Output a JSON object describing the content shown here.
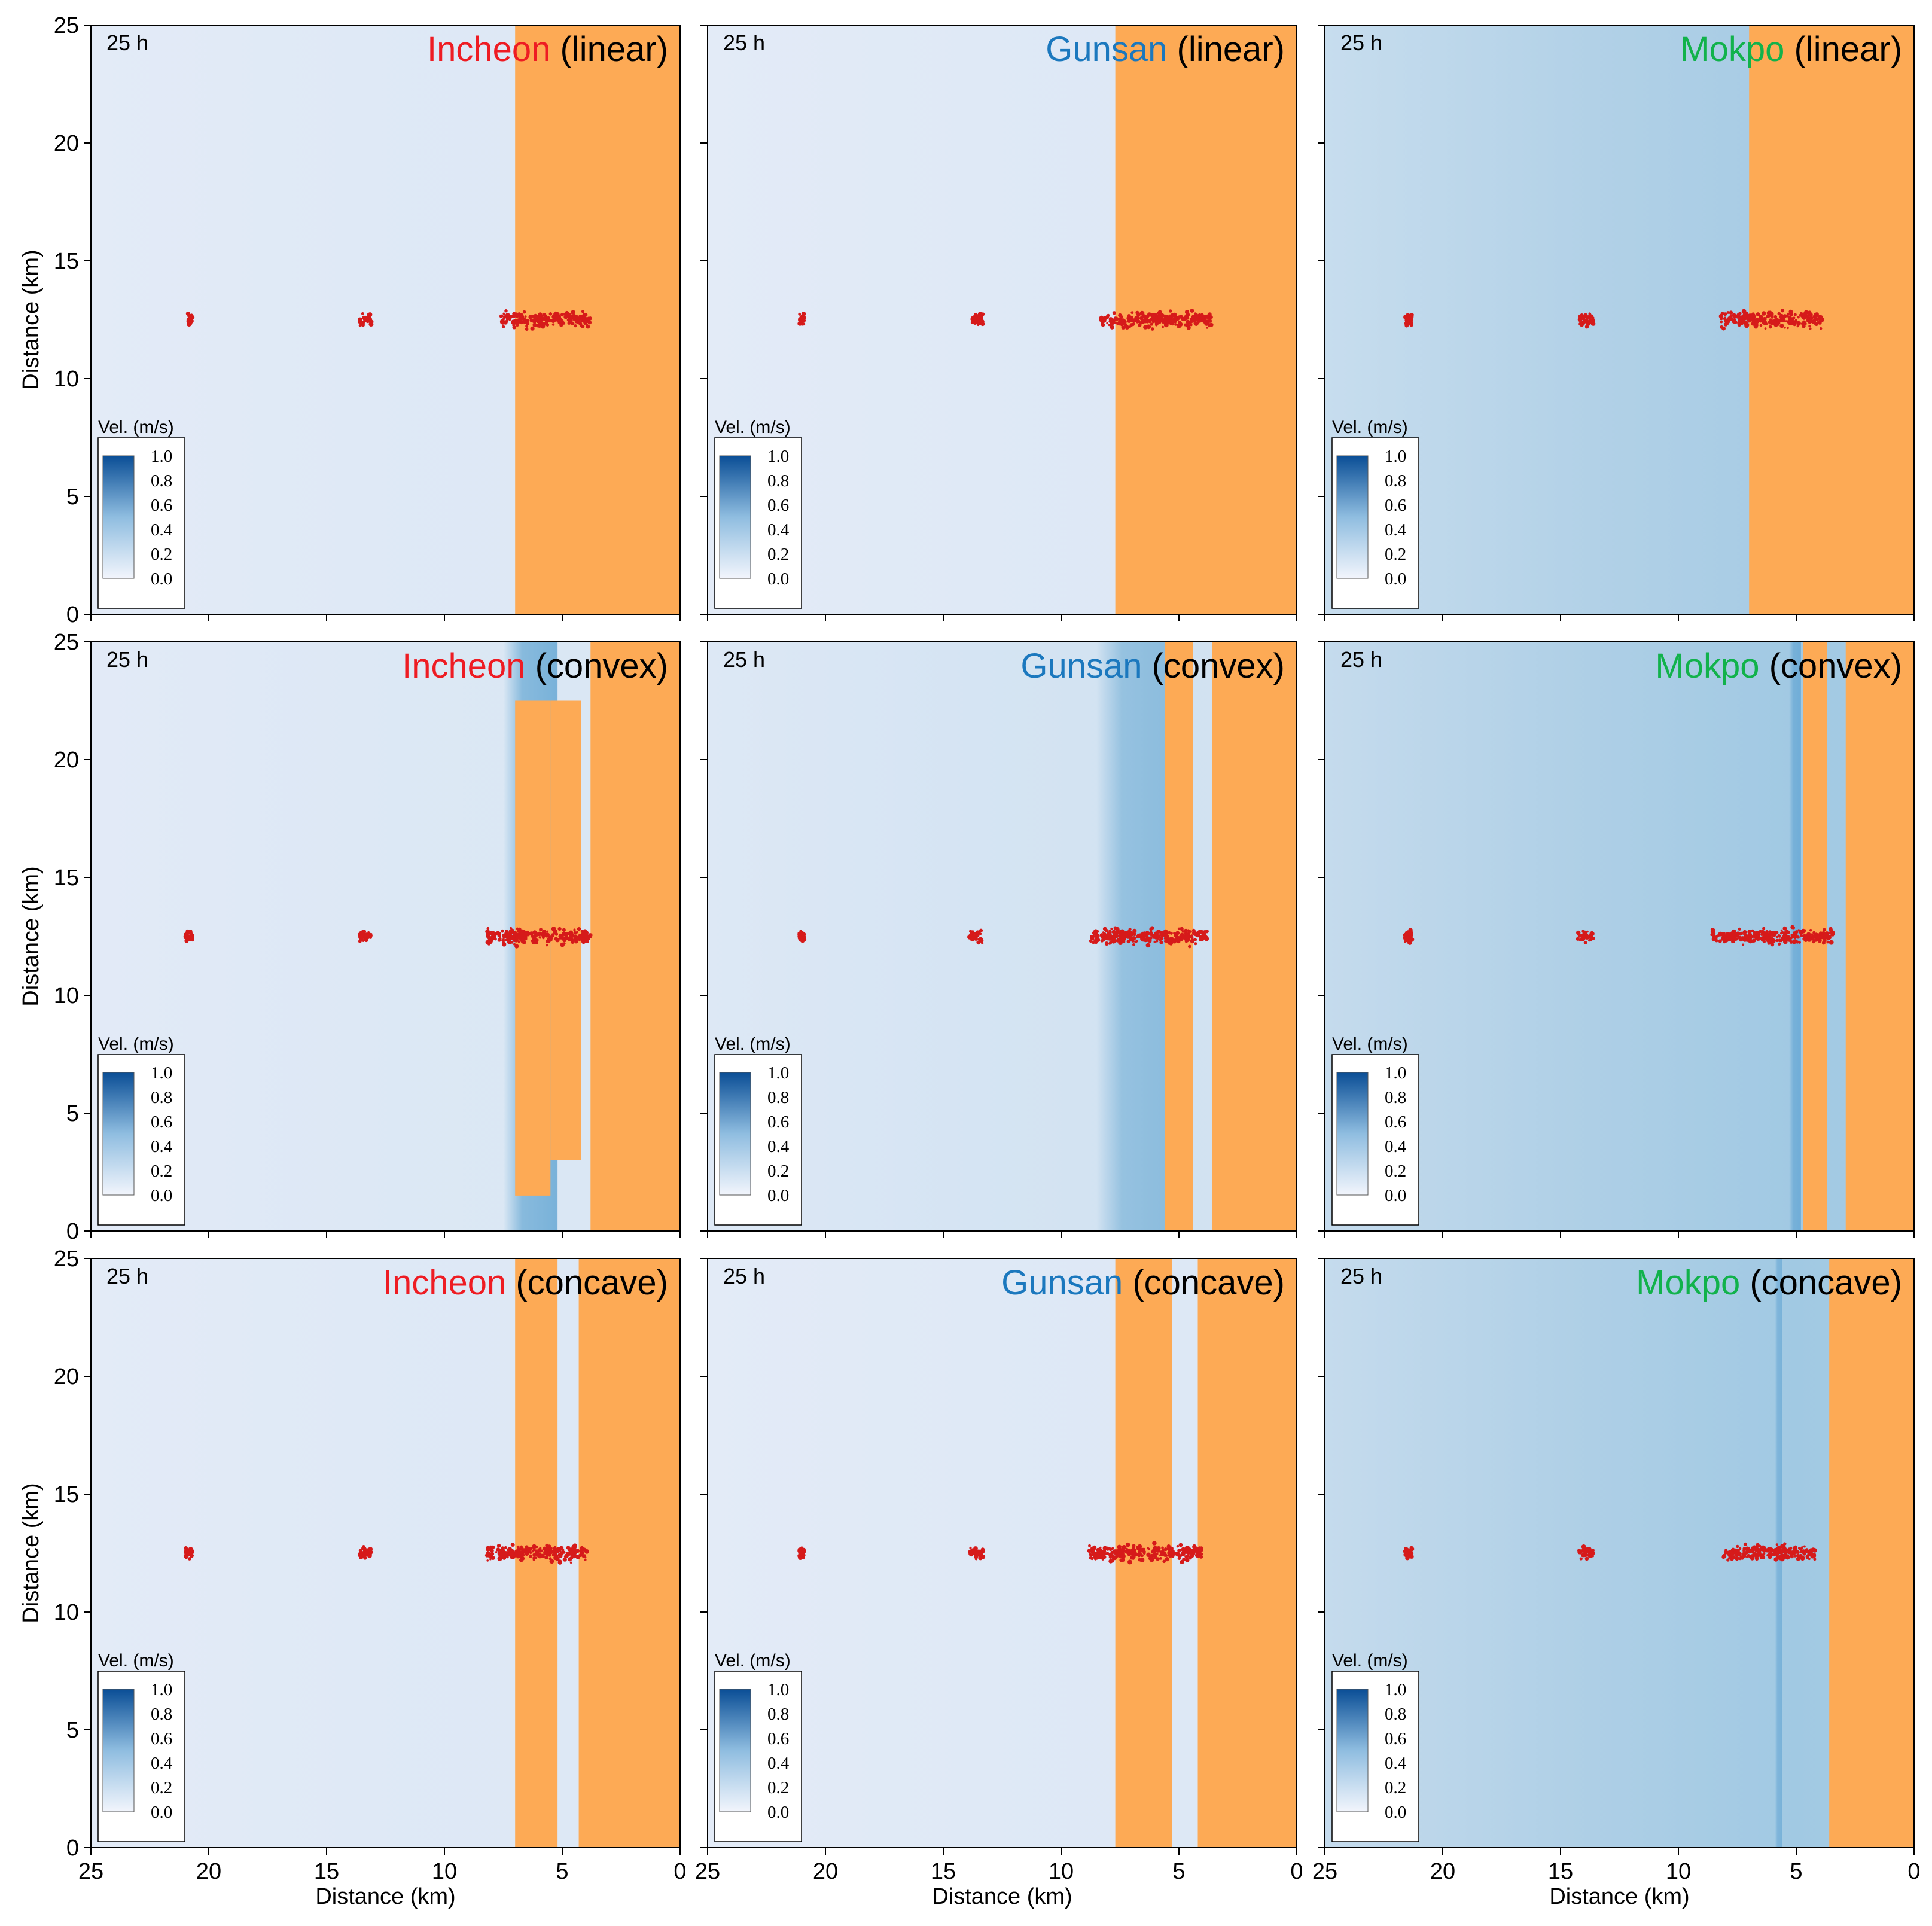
{
  "chart_data": {
    "type": "heatmap",
    "description_fields": "velocity field panels with shoreline (orange land) and red particle clusters",
    "grid": {
      "rows": 3,
      "cols": 3
    },
    "xlabel": "Distance (km)",
    "ylabel": "Distance (km)",
    "xlim": [
      25,
      0
    ],
    "ylim": [
      0,
      25
    ],
    "x_ticks": [
      25,
      20,
      15,
      10,
      5,
      0
    ],
    "y_ticks": [
      0,
      5,
      10,
      15,
      20,
      25
    ],
    "time_label": "25 h",
    "colorbar": {
      "title": "Vel. (m/s)",
      "ticks": [
        "1.0",
        "0.8",
        "0.6",
        "0.4",
        "0.2",
        "0.0"
      ],
      "min": 0.0,
      "max": 1.0,
      "color_low": "#f2f5fc",
      "color_high": "#0a4e96"
    },
    "colors": {
      "land": "#fdaa55",
      "particles": "#d61a1a",
      "ocean_low": "#e9eef9",
      "ocean_mid": "#a7cce4",
      "ocean_high": "#5da2d2"
    },
    "stations": [
      {
        "name": "Incheon",
        "color": "#ee1c23"
      },
      {
        "name": "Gunsan",
        "color": "#1b78be"
      },
      {
        "name": "Mokpo",
        "color": "#11b24b"
      }
    ],
    "shapes": [
      "(linear)",
      "(convex)",
      "(concave)"
    ],
    "panels": [
      {
        "station": "Incheon",
        "shape": "(linear)",
        "background_velocity": 0.05,
        "land": [
          {
            "x_from": 7.0,
            "x_to": 0,
            "y_from": 0,
            "y_to": 25
          }
        ],
        "channel_bands": [],
        "particle_y": 12.5,
        "particle_clusters": [
          {
            "x_from": 20.9,
            "x_to": 20.7
          },
          {
            "x_from": 13.6,
            "x_to": 13.1
          },
          {
            "x_from": 7.6,
            "x_to": 3.8
          }
        ]
      },
      {
        "station": "Gunsan",
        "shape": "(linear)",
        "background_velocity": 0.05,
        "land": [
          {
            "x_from": 7.7,
            "x_to": 0,
            "y_from": 0,
            "y_to": 25
          }
        ],
        "channel_bands": [],
        "particle_y": 12.5,
        "particle_clusters": [
          {
            "x_from": 21.1,
            "x_to": 20.9
          },
          {
            "x_from": 13.8,
            "x_to": 13.3
          },
          {
            "x_from": 8.3,
            "x_to": 3.6
          }
        ]
      },
      {
        "station": "Mokpo",
        "shape": "(linear)",
        "background_velocity": 0.28,
        "land": [
          {
            "x_from": 7.0,
            "x_to": 0,
            "y_from": 0,
            "y_to": 25
          }
        ],
        "channel_bands": [],
        "particle_y": 12.5,
        "particle_clusters": [
          {
            "x_from": 21.6,
            "x_to": 21.3
          },
          {
            "x_from": 14.2,
            "x_to": 13.6
          },
          {
            "x_from": 8.2,
            "x_to": 3.9
          }
        ]
      },
      {
        "station": "Incheon",
        "shape": "(convex)",
        "background_velocity": 0.06,
        "land": [
          {
            "x_from": 7.0,
            "x_to": 5.5,
            "y_from": 1.5,
            "y_to": 22.5
          },
          {
            "x_from": 5.5,
            "x_to": 4.2,
            "y_from": 3.0,
            "y_to": 22.5
          },
          {
            "x_from": 3.8,
            "x_to": 0,
            "y_from": 0,
            "y_to": 25
          }
        ],
        "channel_bands": [
          {
            "x_from": 7.5,
            "x_to": 5.2,
            "velocity": 0.55
          }
        ],
        "particle_y": 12.5,
        "particle_clusters": [
          {
            "x_from": 21.0,
            "x_to": 20.7
          },
          {
            "x_from": 13.6,
            "x_to": 13.1
          },
          {
            "x_from": 8.2,
            "x_to": 3.8
          }
        ]
      },
      {
        "station": "Gunsan",
        "shape": "(convex)",
        "background_velocity": 0.1,
        "land": [
          {
            "x_from": 5.6,
            "x_to": 4.4,
            "y_from": 0,
            "y_to": 25
          },
          {
            "x_from": 3.6,
            "x_to": 0,
            "y_from": 0,
            "y_to": 25
          }
        ],
        "channel_bands": [
          {
            "x_from": 8.5,
            "x_to": 5.4,
            "velocity": 0.45
          }
        ],
        "particle_y": 12.5,
        "particle_clusters": [
          {
            "x_from": 21.1,
            "x_to": 20.9
          },
          {
            "x_from": 13.9,
            "x_to": 13.3
          },
          {
            "x_from": 8.8,
            "x_to": 3.8
          }
        ]
      },
      {
        "station": "Mokpo",
        "shape": "(convex)",
        "background_velocity": 0.3,
        "land": [
          {
            "x_from": 4.7,
            "x_to": 3.7,
            "y_from": 0,
            "y_to": 25
          },
          {
            "x_from": 2.9,
            "x_to": 0,
            "y_from": 0,
            "y_to": 25
          }
        ],
        "channel_bands": [
          {
            "x_from": 5.3,
            "x_to": 4.8,
            "velocity": 0.6
          }
        ],
        "particle_y": 12.5,
        "particle_clusters": [
          {
            "x_from": 21.6,
            "x_to": 21.3
          },
          {
            "x_from": 14.3,
            "x_to": 13.6
          },
          {
            "x_from": 8.6,
            "x_to": 3.4
          }
        ]
      },
      {
        "station": "Incheon",
        "shape": "(concave)",
        "background_velocity": 0.05,
        "land": [
          {
            "x_from": 7.0,
            "x_to": 5.2,
            "y_from": 0,
            "y_to": 25
          },
          {
            "x_from": 4.3,
            "x_to": 0,
            "y_from": 0,
            "y_to": 25
          }
        ],
        "channel_bands": [],
        "particle_y": 12.5,
        "particle_clusters": [
          {
            "x_from": 21.0,
            "x_to": 20.7
          },
          {
            "x_from": 13.6,
            "x_to": 13.1
          },
          {
            "x_from": 8.2,
            "x_to": 3.9
          }
        ]
      },
      {
        "station": "Gunsan",
        "shape": "(concave)",
        "background_velocity": 0.05,
        "land": [
          {
            "x_from": 7.7,
            "x_to": 5.3,
            "y_from": 0,
            "y_to": 25
          },
          {
            "x_from": 4.2,
            "x_to": 0,
            "y_from": 0,
            "y_to": 25
          }
        ],
        "channel_bands": [],
        "particle_y": 12.5,
        "particle_clusters": [
          {
            "x_from": 21.1,
            "x_to": 20.9
          },
          {
            "x_from": 13.9,
            "x_to": 13.3
          },
          {
            "x_from": 8.8,
            "x_to": 4.0
          }
        ]
      },
      {
        "station": "Mokpo",
        "shape": "(concave)",
        "background_velocity": 0.3,
        "land": [
          {
            "x_from": 3.6,
            "x_to": 0,
            "y_from": 0,
            "y_to": 25
          }
        ],
        "channel_bands": [
          {
            "x_from": 5.9,
            "x_to": 5.6,
            "velocity": 0.55
          }
        ],
        "particle_y": 12.5,
        "particle_clusters": [
          {
            "x_from": 21.6,
            "x_to": 21.3
          },
          {
            "x_from": 14.3,
            "x_to": 13.6
          },
          {
            "x_from": 8.2,
            "x_to": 4.2
          }
        ]
      }
    ]
  }
}
